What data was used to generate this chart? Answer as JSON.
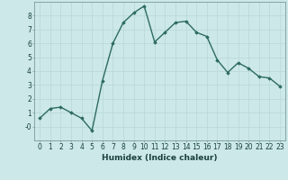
{
  "x": [
    0,
    1,
    2,
    3,
    4,
    5,
    6,
    7,
    8,
    9,
    10,
    11,
    12,
    13,
    14,
    15,
    16,
    17,
    18,
    19,
    20,
    21,
    22,
    23
  ],
  "y": [
    0.6,
    1.3,
    1.4,
    1.0,
    0.6,
    -0.3,
    3.3,
    6.0,
    7.5,
    8.2,
    8.7,
    6.1,
    6.8,
    7.5,
    7.6,
    6.8,
    6.5,
    4.8,
    3.9,
    4.6,
    4.2,
    3.6,
    3.5,
    2.9
  ],
  "xlabel": "Humidex (Indice chaleur)",
  "ylim": [
    -1,
    9
  ],
  "xlim": [
    -0.5,
    23.5
  ],
  "yticks": [
    0,
    1,
    2,
    3,
    4,
    5,
    6,
    7,
    8
  ],
  "ytick_labels": [
    "-0",
    "1",
    "2",
    "3",
    "4",
    "5",
    "6",
    "7",
    "8"
  ],
  "xticks": [
    0,
    1,
    2,
    3,
    4,
    5,
    6,
    7,
    8,
    9,
    10,
    11,
    12,
    13,
    14,
    15,
    16,
    17,
    18,
    19,
    20,
    21,
    22,
    23
  ],
  "line_color": "#2d6b5e",
  "marker": "D",
  "marker_size": 1.8,
  "bg_color": "#cce8e8",
  "grid_color": "#b8d8d8",
  "spine_color": "#7a9a9a",
  "label_color": "#1a4040",
  "xlabel_fontsize": 6.5,
  "tick_fontsize": 5.5,
  "linewidth": 1.0
}
